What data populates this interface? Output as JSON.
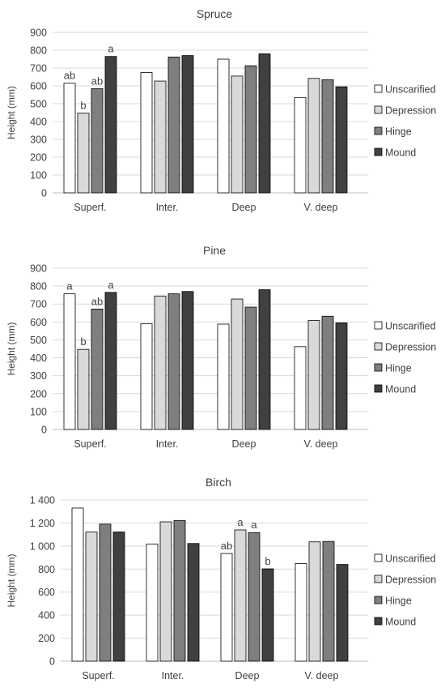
{
  "legend_labels": [
    "Unscarified",
    "Depression",
    "Hinge",
    "Mound"
  ],
  "colors": {
    "unscarified": "#ffffff",
    "depression": "#d9d9d9",
    "hinge": "#7f7f7f",
    "mound": "#404040",
    "stroke": "#000000",
    "grid": "#d9d9d9",
    "axis": "#bfbfbf"
  },
  "chart_data": [
    {
      "type": "bar",
      "title": "Spruce",
      "ylabel": "Height (mm)",
      "xlabel": "",
      "categories": [
        "Superf.",
        "Inter.",
        "Deep",
        "V. deep"
      ],
      "yticks": [
        "0",
        "100",
        "200",
        "300",
        "400",
        "500",
        "600",
        "700",
        "800",
        "900"
      ],
      "ylim": [
        0,
        900
      ],
      "grid": true,
      "legend_position": "right",
      "series": [
        {
          "name": "Unscarified",
          "values": [
            615,
            675,
            750,
            535
          ]
        },
        {
          "name": "Depression",
          "values": [
            447,
            627,
            655,
            642
          ]
        },
        {
          "name": "Hinge",
          "values": [
            585,
            762,
            713,
            635
          ]
        },
        {
          "name": "Mound",
          "values": [
            765,
            770,
            780,
            595
          ]
        }
      ],
      "annotations": [
        [
          "ab",
          "b",
          "ab",
          "a"
        ],
        [
          "",
          "",
          "",
          ""
        ],
        [
          "",
          "",
          "",
          ""
        ],
        [
          "",
          "",
          "",
          ""
        ]
      ]
    },
    {
      "type": "bar",
      "title": "Pine",
      "ylabel": "Height (mm)",
      "xlabel": "",
      "categories": [
        "Superf.",
        "Inter.",
        "Deep",
        "V. deep"
      ],
      "yticks": [
        "0",
        "100",
        "200",
        "300",
        "400",
        "500",
        "600",
        "700",
        "800",
        "900"
      ],
      "ylim": [
        0,
        900
      ],
      "grid": true,
      "legend_position": "right",
      "series": [
        {
          "name": "Unscarified",
          "values": [
            757,
            590,
            588,
            462
          ]
        },
        {
          "name": "Depression",
          "values": [
            447,
            745,
            728,
            608
          ]
        },
        {
          "name": "Hinge",
          "values": [
            672,
            757,
            683,
            632
          ]
        },
        {
          "name": "Mound",
          "values": [
            765,
            770,
            780,
            595
          ]
        }
      ],
      "annotations": [
        [
          "a",
          "b",
          "ab",
          "a"
        ],
        [
          "",
          "",
          "",
          ""
        ],
        [
          "",
          "",
          "",
          ""
        ],
        [
          "",
          "",
          "",
          ""
        ]
      ]
    },
    {
      "type": "bar",
      "title": "Birch",
      "ylabel": "Height (mm)",
      "xlabel": "",
      "categories": [
        "Superf.",
        "Inter.",
        "Deep",
        "V. deep"
      ],
      "yticks": [
        "0",
        "200",
        "400",
        "600",
        "800",
        "1 000",
        "1 200",
        "1 400"
      ],
      "ylim": [
        0,
        1400
      ],
      "grid": true,
      "legend_position": "right",
      "series": [
        {
          "name": "Unscarified",
          "values": [
            1330,
            1018,
            935,
            848
          ]
        },
        {
          "name": "Depression",
          "values": [
            1122,
            1210,
            1140,
            1036
          ]
        },
        {
          "name": "Hinge",
          "values": [
            1190,
            1222,
            1117,
            1040
          ]
        },
        {
          "name": "Mound",
          "values": [
            1122,
            1022,
            802,
            840
          ]
        }
      ],
      "annotations": [
        [
          "",
          "",
          "",
          ""
        ],
        [
          "",
          "",
          "",
          ""
        ],
        [
          "ab",
          "a",
          "a",
          "b"
        ],
        [
          "",
          "",
          "",
          ""
        ]
      ]
    }
  ]
}
